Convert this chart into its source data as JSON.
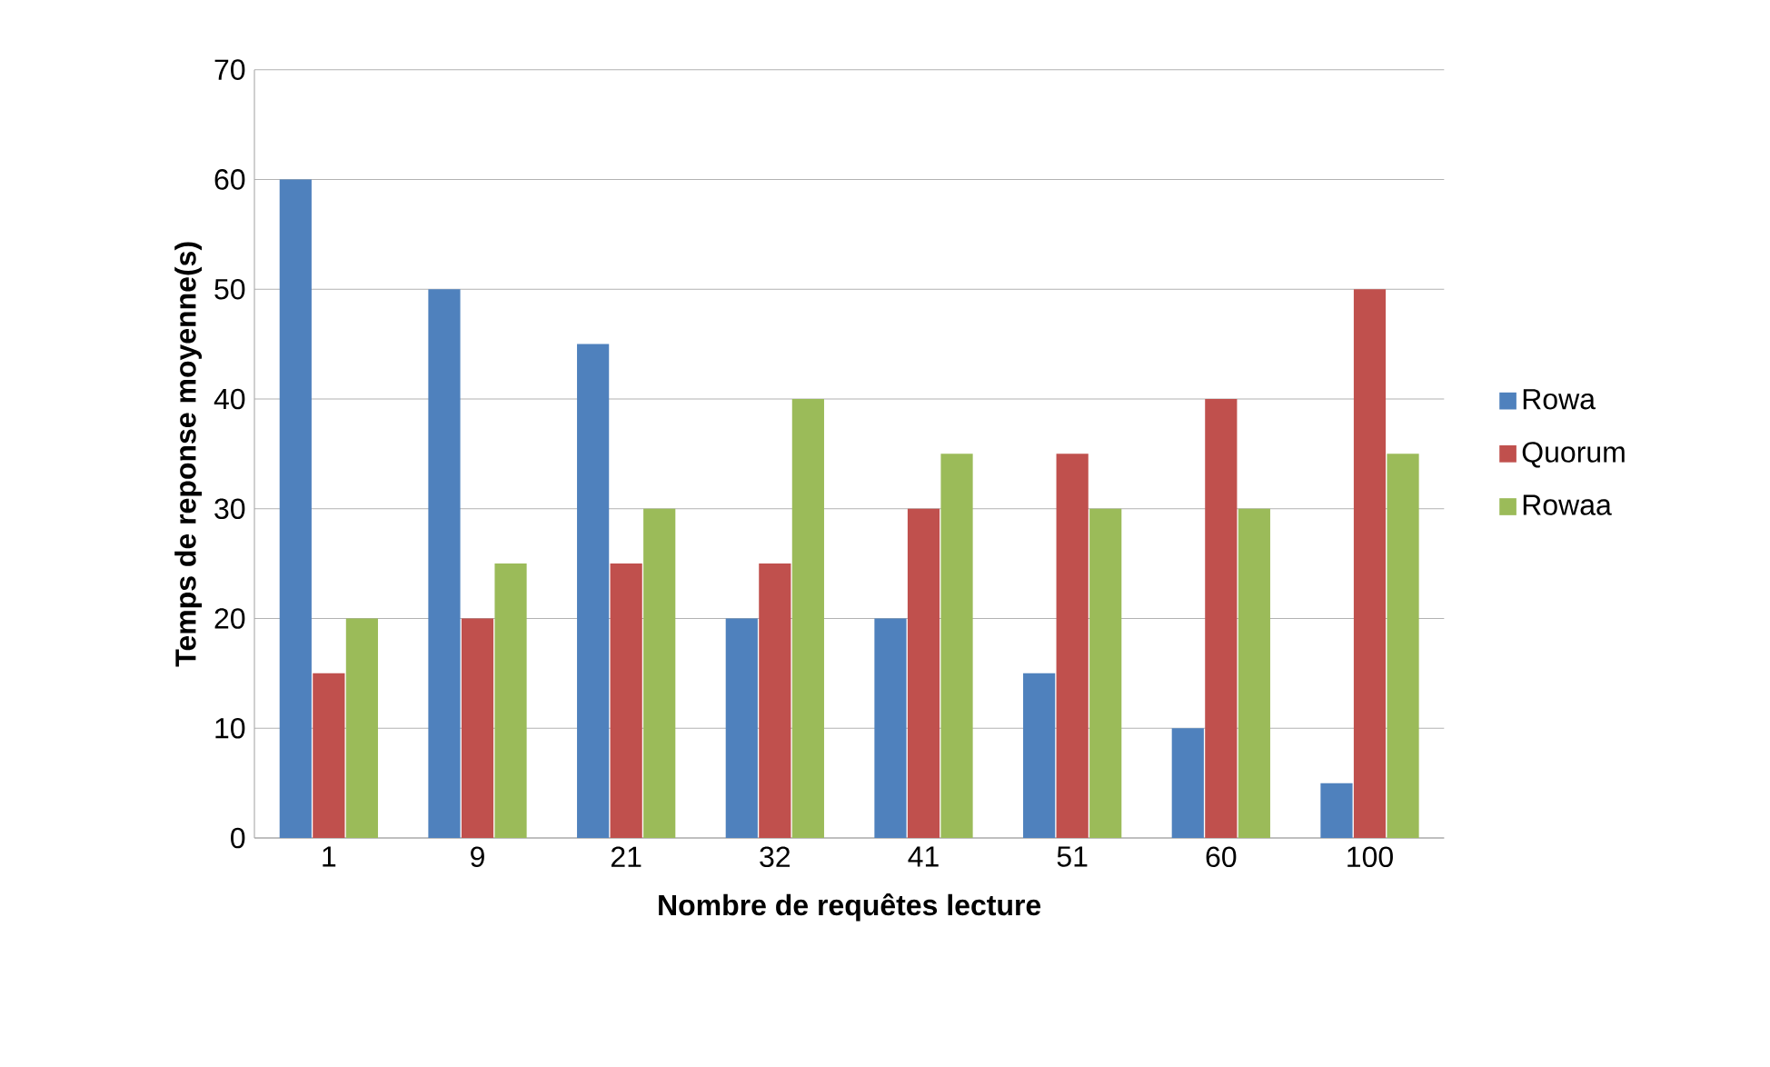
{
  "chart_data": {
    "type": "bar",
    "xlabel": "Nombre de requêtes lecture",
    "ylabel": "Temps de reponse moyenne(s)",
    "categories": [
      "1",
      "9",
      "21",
      "32",
      "41",
      "51",
      "60",
      "100"
    ],
    "series": [
      {
        "name": "Rowa",
        "color": "#4f81bd",
        "values": [
          60,
          50,
          45,
          20,
          20,
          15,
          10,
          5
        ]
      },
      {
        "name": "Quorum",
        "color": "#c0504d",
        "values": [
          15,
          20,
          25,
          25,
          30,
          35,
          40,
          50
        ]
      },
      {
        "name": "Rowaa",
        "color": "#9bbb59",
        "values": [
          20,
          25,
          30,
          40,
          35,
          30,
          30,
          35
        ]
      }
    ],
    "ylim": [
      0,
      70
    ],
    "yticks": [
      0,
      10,
      20,
      30,
      40,
      50,
      60,
      70
    ],
    "grid": "y",
    "legend": "right"
  }
}
